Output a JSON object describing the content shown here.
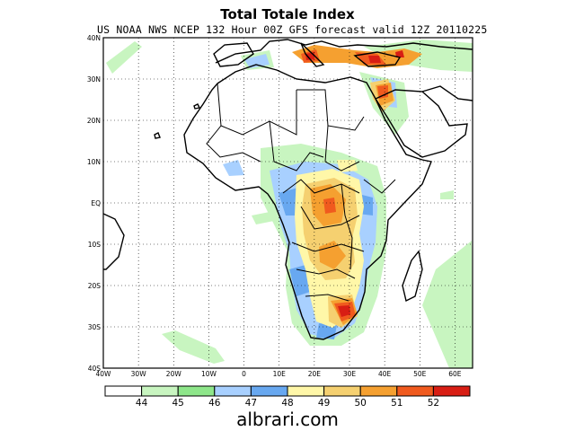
{
  "title": "Total Totale Index",
  "subtitle": "US NOAA NWS NCEP 132 Hour 00Z GFS forecast valid 12Z 20110225",
  "map": {
    "lon_range": [
      -40,
      65
    ],
    "lat_range": [
      -40,
      40
    ],
    "lat_labels": [
      "40N",
      "30N",
      "20N",
      "10N",
      "EQ",
      "10S",
      "20S",
      "30S",
      "40S"
    ],
    "lon_labels": [
      "40W",
      "30W",
      "20W",
      "10W",
      "0",
      "10E",
      "20E",
      "30E",
      "40E",
      "50E",
      "60E"
    ],
    "grid": "dotted"
  },
  "colorbar": {
    "labels": [
      "44",
      "45",
      "46",
      "47",
      "48",
      "49",
      "50",
      "51",
      "52"
    ],
    "colors": [
      "#ffffff",
      "#c8f5c0",
      "#8ee68a",
      "#a8d0ff",
      "#68a8f0",
      "#fff7a8",
      "#f5d070",
      "#f5a030",
      "#f05a1e",
      "#d81e14"
    ]
  },
  "watermark": "albrari.com"
}
